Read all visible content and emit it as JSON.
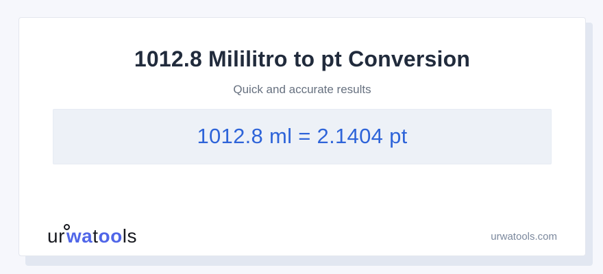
{
  "header": {
    "title": "1012.8 Mililitro to pt Conversion",
    "subtitle": "Quick and accurate results"
  },
  "result": {
    "equation": "1012.8 ml = 2.1404 pt",
    "from_value": "1012.8",
    "from_unit": "ml",
    "to_value": "2.1404",
    "to_unit": "pt"
  },
  "logo": {
    "seg1": "ur",
    "seg2": "wa",
    "seg3": "t",
    "seg4": "oo",
    "seg5": "ls"
  },
  "footer": {
    "website": "urwatools.com"
  },
  "colors": {
    "page_bg": "#f6f7fc",
    "stack_layer": "#e2e7f1",
    "card_border": "#e3e6ee",
    "title_text": "#212b3c",
    "subtitle_text": "#66707f",
    "result_bg": "#edf1f7",
    "result_border": "#e6ebf3",
    "accent_blue": "#2e64d9",
    "logo_dark": "#17191f",
    "logo_blue": "#5066e8",
    "muted_text": "#7b889d"
  }
}
